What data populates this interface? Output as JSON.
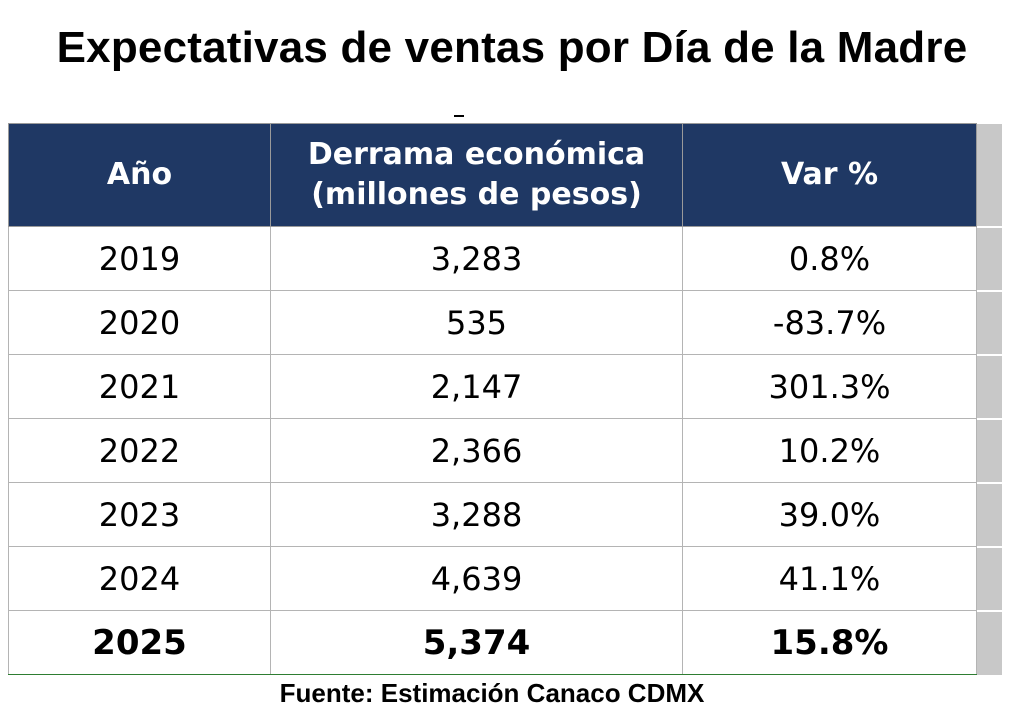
{
  "title": "Expectativas de ventas por Día de la Madre",
  "table": {
    "headers": {
      "year": "Año",
      "amount_line1": "Derrama económica",
      "amount_line2": "(millones de pesos)",
      "change": "Var %"
    },
    "rows": [
      {
        "year": "2019",
        "amount": "3,283",
        "change": "0.8%"
      },
      {
        "year": "2020",
        "amount": "535",
        "change": "-83.7%"
      },
      {
        "year": "2021",
        "amount": "2,147",
        "change": "301.3%"
      },
      {
        "year": "2022",
        "amount": "2,366",
        "change": "10.2%"
      },
      {
        "year": "2023",
        "amount": "3,288",
        "change": "39.0%"
      },
      {
        "year": "2024",
        "amount": "4,639",
        "change": "41.1%"
      },
      {
        "year": "2025",
        "amount": "5,374",
        "change": "15.8%"
      }
    ]
  },
  "source": "Fuente: Estimación Canaco CDMX",
  "colors": {
    "header_background": "#1f3864",
    "header_text": "#ffffff",
    "divider_accent": "#2e7d32"
  }
}
